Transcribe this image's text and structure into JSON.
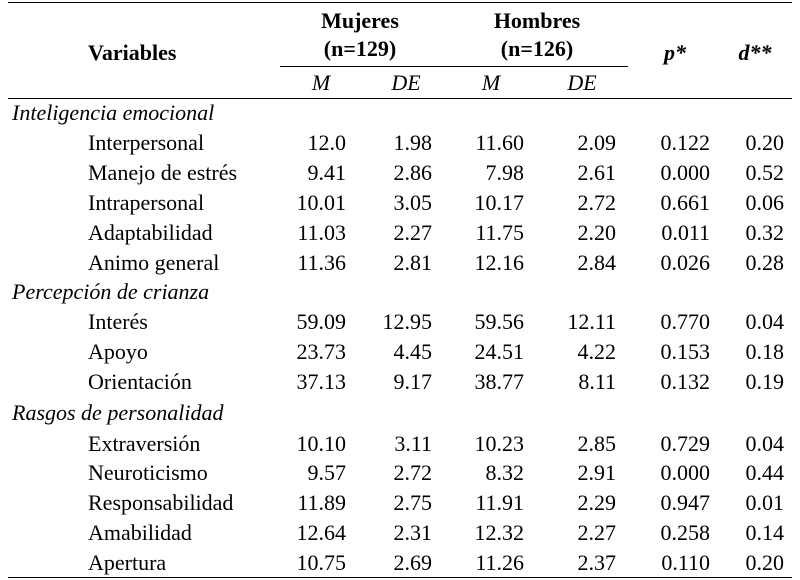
{
  "headers": {
    "variables": "Variables",
    "women": "Mujeres",
    "women_n": "(n=129)",
    "men": "Hombres",
    "men_n": "(n=126)",
    "p": "p*",
    "d": "d**",
    "mean": "M",
    "sd": "DE"
  },
  "sections": [
    {
      "title": "Inteligencia emocional",
      "rows": [
        {
          "name": "Interpersonal",
          "m_w": "12.0",
          "de_w": "1.98",
          "m_m": "11.60",
          "de_m": "2.09",
          "p": "0.122",
          "d": "0.20"
        },
        {
          "name": "Manejo de estrés",
          "m_w": "9.41",
          "de_w": "2.86",
          "m_m": "7.98",
          "de_m": "2.61",
          "p": "0.000",
          "d": "0.52"
        },
        {
          "name": "Intrapersonal",
          "m_w": "10.01",
          "de_w": "3.05",
          "m_m": "10.17",
          "de_m": "2.72",
          "p": "0.661",
          "d": "0.06"
        },
        {
          "name": "Adaptabilidad",
          "m_w": "11.03",
          "de_w": "2.27",
          "m_m": "11.75",
          "de_m": "2.20",
          "p": "0.011",
          "d": "0.32"
        },
        {
          "name": "Animo general",
          "m_w": "11.36",
          "de_w": "2.81",
          "m_m": "12.16",
          "de_m": "2.84",
          "p": "0.026",
          "d": "0.28"
        }
      ]
    },
    {
      "title": "Percepción de crianza",
      "rows": [
        {
          "name": "Interés",
          "m_w": "59.09",
          "de_w": "12.95",
          "m_m": "59.56",
          "de_m": "12.11",
          "p": "0.770",
          "d": "0.04"
        },
        {
          "name": "Apoyo",
          "m_w": "23.73",
          "de_w": "4.45",
          "m_m": "24.51",
          "de_m": "4.22",
          "p": "0.153",
          "d": "0.18"
        },
        {
          "name": "Orientación",
          "m_w": "37.13",
          "de_w": "9.17",
          "m_m": "38.77",
          "de_m": "8.11",
          "p": "0.132",
          "d": "0.19"
        }
      ]
    },
    {
      "title": "Rasgos de personalidad",
      "rows": [
        {
          "name": "Extraversión",
          "m_w": "10.10",
          "de_w": "3.11",
          "m_m": "10.23",
          "de_m": "2.85",
          "p": "0.729",
          "d": "0.04"
        },
        {
          "name": "Neuroticismo",
          "m_w": "9.57",
          "de_w": "2.72",
          "m_m": "8.32",
          "de_m": "2.91",
          "p": "0.000",
          "d": "0.44"
        },
        {
          "name": "Responsabilidad",
          "m_w": "11.89",
          "de_w": "2.75",
          "m_m": "11.91",
          "de_m": "2.29",
          "p": "0.947",
          "d": "0.01"
        },
        {
          "name": "Amabilidad",
          "m_w": "12.64",
          "de_w": "2.31",
          "m_m": "12.32",
          "de_m": "2.27",
          "p": "0.258",
          "d": "0.14"
        },
        {
          "name": "Apertura",
          "m_w": "10.75",
          "de_w": "2.69",
          "m_m": "11.26",
          "de_m": "2.37",
          "p": "0.110",
          "d": "0.20"
        }
      ]
    }
  ]
}
